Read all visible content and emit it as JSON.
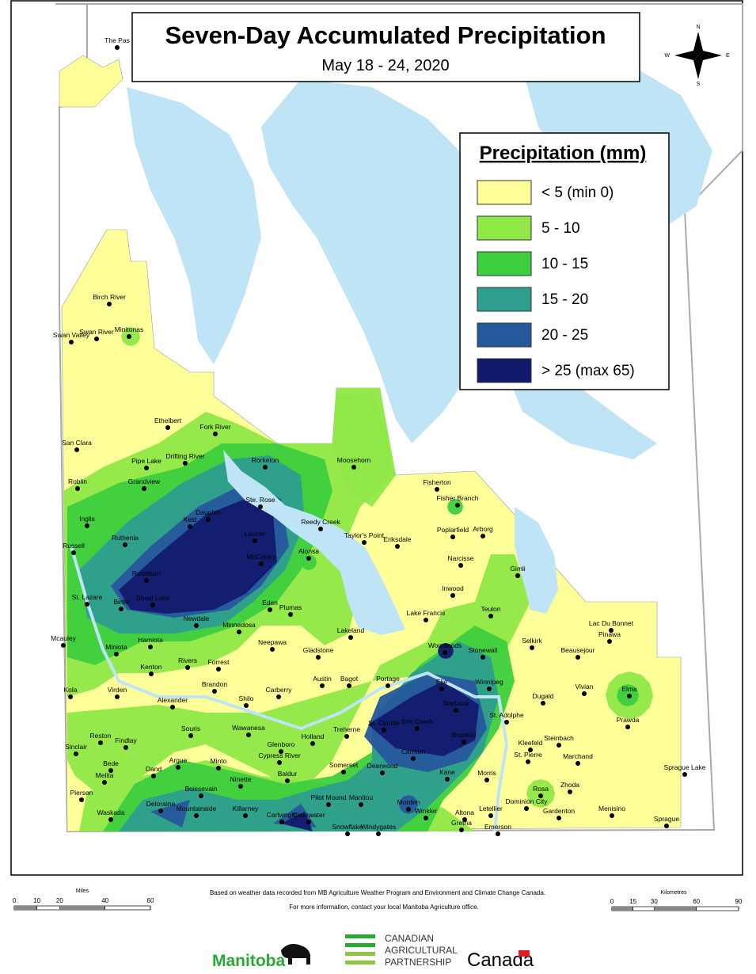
{
  "header": {
    "title": "Seven-Day Accumulated Precipitation",
    "subtitle": "May 18 - 24, 2020"
  },
  "compass": {
    "north": "N",
    "east": "E",
    "south": "S",
    "west": "W"
  },
  "legend": {
    "title": "Precipitation (mm)",
    "items": [
      {
        "label": "< 5 (min 0)",
        "color": "#ffff99"
      },
      {
        "label": "5 - 10",
        "color": "#8fe846"
      },
      {
        "label": "10 - 15",
        "color": "#3ecf3e"
      },
      {
        "label": "15 - 20",
        "color": "#2e9e8e"
      },
      {
        "label": "20 - 25",
        "color": "#26589c"
      },
      {
        "label": "> 25 (max 65)",
        "color": "#121a6e"
      }
    ]
  },
  "places": [
    "The Pas",
    "Birch River",
    "Swan River",
    "Minitonas",
    "Swan Valley",
    "Ethelbert",
    "Fork River",
    "San Clara",
    "Drifting River",
    "Pipe Lake",
    "Rorketon",
    "Moosehorn",
    "Roblin",
    "Grandview",
    "Dauphin",
    "Ste. Rose",
    "Fisherton",
    "Fisher Branch",
    "Inglis",
    "Keld",
    "Reedy Creek",
    "Taylor's Point",
    "Poplarfield",
    "Arborg",
    "Ruthenia",
    "Laurier",
    "Eriksdale",
    "Russell",
    "Alonsa",
    "Narcisse",
    "Gimli",
    "McCreary",
    "Rossburn",
    "St. Lazare",
    "Birtle",
    "Shoal Lake",
    "Inwood",
    "Eden",
    "Plumas",
    "Lake Francis",
    "Teulon",
    "Lac Du Bonnet",
    "Newdale",
    "Minnedosa",
    "Lakeland",
    "Pinawa",
    "Mcauley",
    "Hamiota",
    "Woodlands",
    "Selkirk",
    "Miniota",
    "Neepawa",
    "Gladstone",
    "Stonewall",
    "Beausejour",
    "Rivers",
    "Forrest",
    "Kenton",
    "Austin",
    "Bagot",
    "Portage",
    "Elie",
    "Winnipeg",
    "Brandon",
    "Carberry",
    "Vivian",
    "Elma",
    "Virden",
    "Kola",
    "Dugald",
    "Shilo",
    "Alexander",
    "Starbuck",
    "Treherne",
    "St. Claude",
    "Elm Creek",
    "St. Adolphe",
    "Souris",
    "Wawanesa",
    "Prawda",
    "Reston",
    "Findlay",
    "Brunkild",
    "Holland",
    "Glenboro",
    "Steinbach",
    "Kleefeld",
    "Carman",
    "Sinclair",
    "Cypress River",
    "St. Pierre",
    "Argue",
    "Minto",
    "Marchand",
    "Bede",
    "Somerset",
    "Dand",
    "Deerwood",
    "Kane",
    "Morris",
    "Sprague Lake",
    "Baldur",
    "Melita",
    "Ninette",
    "Boissevain",
    "Rosa",
    "Zhoda",
    "Pierson",
    "Pilot Mound",
    "Manitou",
    "Dominion City",
    "Deloraine",
    "Mountainside",
    "Killarney",
    "Morden",
    "Winkler",
    "Letellier",
    "Gardenton",
    "Menisino",
    "Waskada",
    "Cartwright",
    "Clearwater",
    "Altona",
    "Gretna",
    "Emerson",
    "Sprague",
    "Snowflake",
    "Windygates"
  ],
  "scale_miles": {
    "title": "Miles",
    "ticks": [
      0,
      10,
      20,
      40,
      60
    ]
  },
  "scale_km": {
    "title": "Kilometres",
    "ticks": [
      0,
      15,
      30,
      60,
      90
    ]
  },
  "footer": {
    "line1": "Based on weather data recorded from MB Agriculture Weather Program and Environment and Climate Change Canada.",
    "line2": "For more information, contact your local Manitoba Agriculture office."
  },
  "logos": {
    "manitoba": "Manitoba",
    "cap": [
      "CANADIAN",
      "AGRICULTURAL",
      "PARTNERSHIP"
    ],
    "canada": "Canada"
  }
}
